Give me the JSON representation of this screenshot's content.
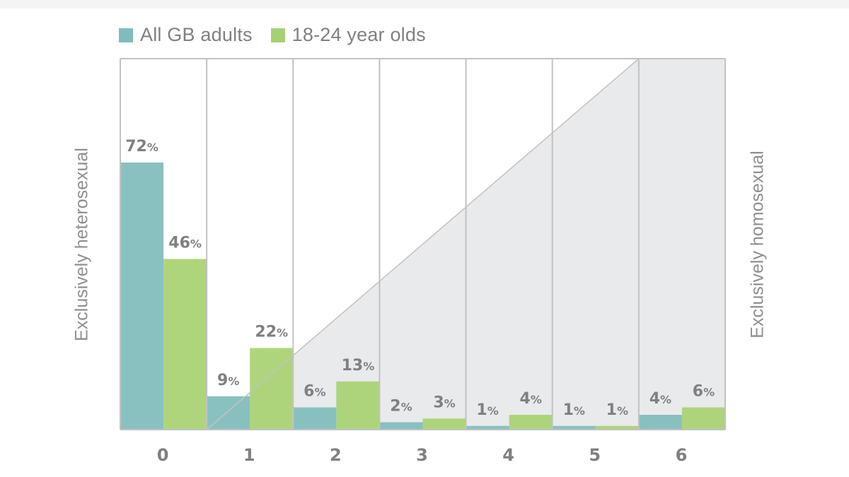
{
  "legend": {
    "items": [
      {
        "label": "All GB adults",
        "color": "#7fbcbc"
      },
      {
        "label": "18-24 year olds",
        "color": "#a7d170"
      }
    ]
  },
  "side_labels": {
    "left": "Exclusively heterosexual",
    "right": "Exclusively homosexual"
  },
  "colors": {
    "adults": "#7fbcbc",
    "youth": "#a7d170",
    "triangle": "#e5e6e9",
    "grid": "#c2c2c4",
    "value_label": "#808080",
    "background": "#ffffff"
  },
  "chart_data": {
    "type": "bar",
    "categories": [
      "0",
      "1",
      "2",
      "3",
      "4",
      "5",
      "6"
    ],
    "series": [
      {
        "name": "All GB adults",
        "values": [
          72,
          9,
          6,
          2,
          1,
          1,
          4
        ],
        "labels": [
          "72%",
          "9%",
          "6%",
          "2%",
          "1%",
          "1%",
          "4%"
        ]
      },
      {
        "name": "18-24 year olds",
        "values": [
          46,
          22,
          13,
          3,
          4,
          1,
          6
        ],
        "labels": [
          "46%",
          "22%",
          "13%",
          "3%",
          "4%",
          "1%",
          "6%"
        ]
      }
    ],
    "xlabel": "",
    "ylabel": "",
    "ylim": [
      0,
      100
    ],
    "grid": true,
    "legend_position": "top-left",
    "annotations": [
      "Exclusively heterosexual",
      "Exclusively homosexual"
    ]
  }
}
